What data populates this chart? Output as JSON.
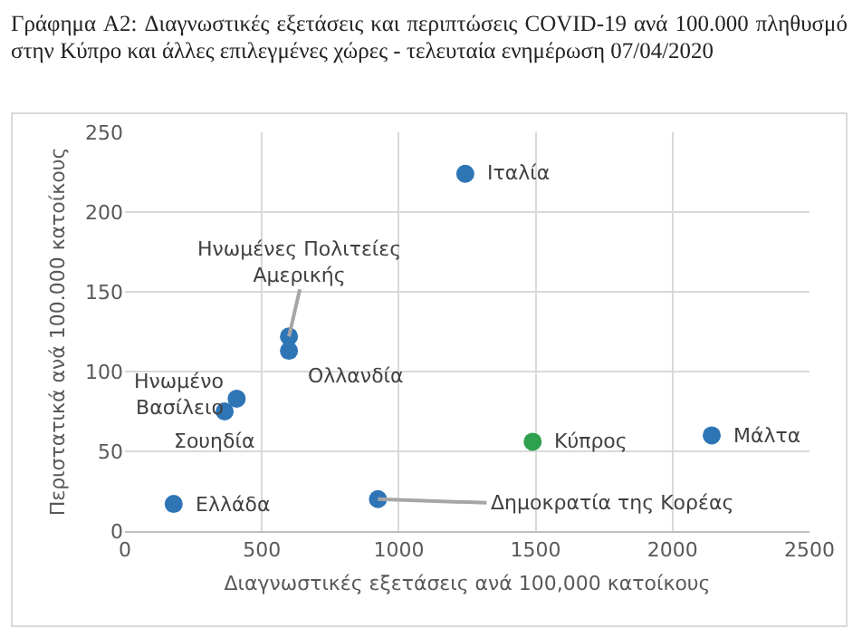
{
  "chart_data": {
    "type": "scatter",
    "title": "Γράφημα A2: Διαγνωστικές εξετάσεις και περιπτώσεις COVID-19 ανά 100.000 πληθυσμό στην Κύπρο και άλλες επιλεγμένες χώρες - τελευταία ενημέρωση 07/04/2020",
    "xlabel": "Διαγνωστικές εξετάσεις ανά 100,000 κατοίκους",
    "ylabel": "Περιστατικά ανά 100.000 κατοίκους",
    "xlim": [
      0,
      2500
    ],
    "xticks": [
      0,
      500,
      1000,
      1500,
      2000,
      2500
    ],
    "ylim": [
      0,
      250
    ],
    "yticks": [
      0,
      50,
      100,
      150,
      200,
      250
    ],
    "grid": true,
    "legend": false,
    "marker": "circle",
    "series": [
      {
        "name": "Ιταλία",
        "color": "#2e75b6",
        "x": [
          1243
        ],
        "values": [
          224
        ]
      },
      {
        "name": "Ηνωμένες Πολιτείες Αμερικής",
        "color": "#2e75b6",
        "x": [
          599
        ],
        "values": [
          122
        ]
      },
      {
        "name": "Ολλανδία",
        "color": "#2e75b6",
        "x": [
          599
        ],
        "values": [
          113
        ]
      },
      {
        "name": "Ηνωμένο Βασίλειο",
        "color": "#2e75b6",
        "x": [
          408
        ],
        "values": [
          83
        ]
      },
      {
        "name": "Σουηδία",
        "color": "#2e75b6",
        "x": [
          364
        ],
        "values": [
          75
        ]
      },
      {
        "name": "Ελλάδα",
        "color": "#2e75b6",
        "x": [
          178
        ],
        "values": [
          17
        ]
      },
      {
        "name": "Δημοκρατία της Κορέας",
        "color": "#2e75b6",
        "x": [
          924
        ],
        "values": [
          20
        ]
      },
      {
        "name": "Κύπρος",
        "color": "#2fa04d",
        "x": [
          1489
        ],
        "values": [
          56
        ]
      },
      {
        "name": "Μάλτα",
        "color": "#2e75b6",
        "x": [
          2143
        ],
        "values": [
          60
        ]
      }
    ]
  }
}
